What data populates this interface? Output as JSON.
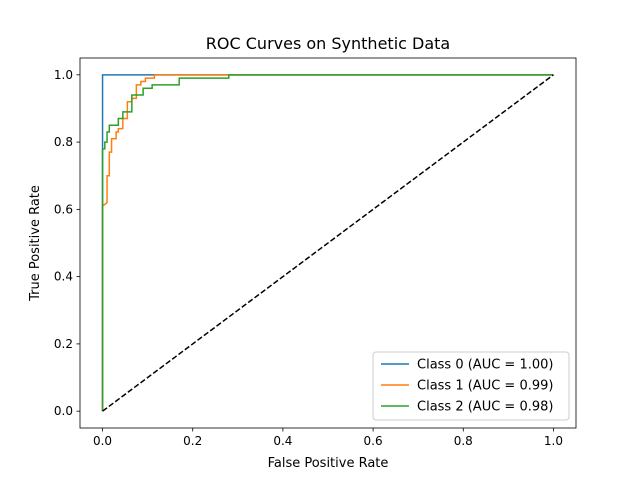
{
  "chart_data": {
    "type": "line",
    "title": "ROC Curves on Synthetic Data",
    "xlabel": "False Positive Rate",
    "ylabel": "True Positive Rate",
    "xlim": [
      -0.05,
      1.05
    ],
    "ylim": [
      -0.05,
      1.05
    ],
    "xticks": [
      0.0,
      0.2,
      0.4,
      0.6,
      0.8,
      1.0
    ],
    "yticks": [
      0.0,
      0.2,
      0.4,
      0.6,
      0.8,
      1.0
    ],
    "xtick_labels": [
      "0.0",
      "0.2",
      "0.4",
      "0.6",
      "0.8",
      "1.0"
    ],
    "ytick_labels": [
      "0.0",
      "0.2",
      "0.4",
      "0.6",
      "0.8",
      "1.0"
    ],
    "grid": false,
    "legend_position": "lower-right",
    "series": [
      {
        "name": "Class 0 (AUC = 1.00)",
        "color": "#1f77b4",
        "x": [
          0.0,
          0.0,
          0.0,
          0.11,
          1.0
        ],
        "y": [
          0.0,
          0.78,
          1.0,
          1.0,
          1.0
        ]
      },
      {
        "name": "Class 1 (AUC = 0.99)",
        "color": "#ff7f0e",
        "x": [
          0.0,
          0.0,
          0.01,
          0.01,
          0.015,
          0.015,
          0.02,
          0.02,
          0.03,
          0.03,
          0.035,
          0.035,
          0.045,
          0.045,
          0.055,
          0.055,
          0.065,
          0.065,
          0.075,
          0.075,
          0.085,
          0.085,
          0.095,
          0.095,
          0.105,
          0.105,
          0.115,
          0.115,
          0.28,
          0.28,
          1.0
        ],
        "y": [
          0.0,
          0.61,
          0.62,
          0.7,
          0.7,
          0.77,
          0.77,
          0.81,
          0.81,
          0.83,
          0.83,
          0.84,
          0.84,
          0.87,
          0.87,
          0.92,
          0.92,
          0.93,
          0.93,
          0.97,
          0.97,
          0.98,
          0.98,
          0.99,
          0.99,
          0.99,
          0.99,
          1.0,
          1.0,
          1.0,
          1.0
        ]
      },
      {
        "name": "Class 2 (AUC = 0.98)",
        "color": "#2ca02c",
        "x": [
          0.0,
          0.0,
          0.005,
          0.005,
          0.01,
          0.01,
          0.015,
          0.015,
          0.035,
          0.035,
          0.045,
          0.045,
          0.065,
          0.065,
          0.09,
          0.09,
          0.11,
          0.11,
          0.17,
          0.17,
          0.28,
          0.28,
          1.0
        ],
        "y": [
          0.0,
          0.78,
          0.78,
          0.8,
          0.8,
          0.83,
          0.83,
          0.85,
          0.85,
          0.87,
          0.87,
          0.89,
          0.89,
          0.94,
          0.94,
          0.96,
          0.96,
          0.97,
          0.97,
          0.99,
          0.99,
          1.0,
          1.0
        ]
      }
    ],
    "reference_line": {
      "x": [
        0.0,
        1.0
      ],
      "y": [
        0.0,
        1.0
      ],
      "color": "#000000",
      "style": "dashed"
    }
  }
}
